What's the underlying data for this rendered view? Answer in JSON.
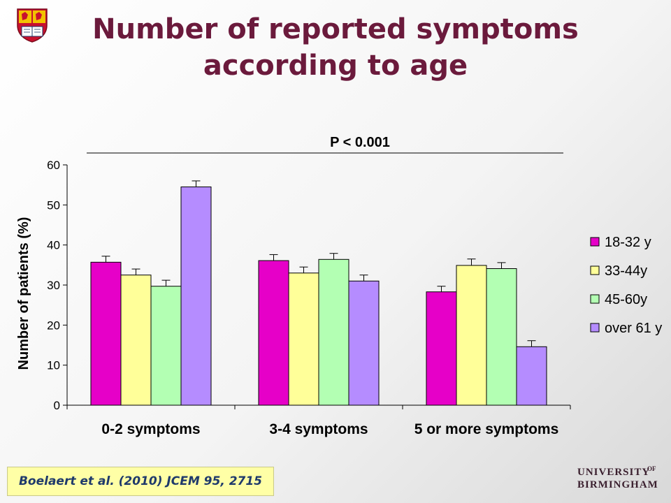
{
  "slide": {
    "title_line1": "Number of reported symptoms",
    "title_line2": "according to age",
    "citation": "Boelaert et al. (2010) JCEM 95, 2715",
    "logo_line1": "UNIVERSITY",
    "logo_of": "OF",
    "logo_line2": "BIRMINGHAM"
  },
  "chart_data": {
    "type": "bar",
    "title": "",
    "annotation": "P < 0.001",
    "xlabel": "",
    "ylabel": "Number of patients (%)",
    "ylim": [
      0,
      60
    ],
    "yticks": [
      0,
      10,
      20,
      30,
      40,
      50,
      60
    ],
    "categories": [
      "0-2 symptoms",
      "3-4 symptoms",
      "5 or more symptoms"
    ],
    "series": [
      {
        "name": "18-32 y",
        "color": "#e600c8",
        "values": [
          35.7,
          36.1,
          28.3
        ],
        "errors": [
          1.5,
          1.5,
          1.4
        ]
      },
      {
        "name": "33-44y",
        "color": "#ffff99",
        "values": [
          32.5,
          33.0,
          34.9
        ],
        "errors": [
          1.5,
          1.5,
          1.6
        ]
      },
      {
        "name": "45-60y",
        "color": "#b3ffb3",
        "values": [
          29.7,
          36.4,
          34.1
        ],
        "errors": [
          1.5,
          1.5,
          1.5
        ]
      },
      {
        "name": "over 61 y",
        "color": "#b58cff",
        "values": [
          54.5,
          31.0,
          14.6
        ],
        "errors": [
          1.5,
          1.5,
          1.5
        ]
      }
    ],
    "legend_position": "right",
    "grid": false
  }
}
